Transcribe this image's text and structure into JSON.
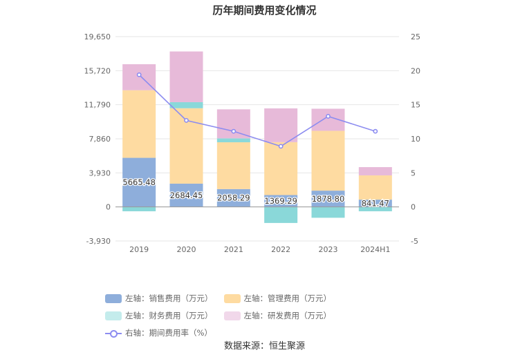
{
  "chart_data": {
    "type": "bar",
    "title": "历年期间费用变化情况",
    "categories": [
      "2019",
      "2020",
      "2021",
      "2022",
      "2023",
      "2024H1"
    ],
    "series": [
      {
        "name": "左轴：销售费用（万元）",
        "values": [
          5665.48,
          2684.45,
          2058.29,
          1369.29,
          1878.8,
          841.47
        ],
        "color": "#8eaedb",
        "stack": "left"
      },
      {
        "name": "左轴：管理费用（万元）",
        "values": [
          7800,
          8700,
          5400,
          6100,
          6900,
          2800
        ],
        "color": "#fedba1",
        "stack": "left"
      },
      {
        "name": "左轴：财务费用（万元）",
        "values": [
          -500,
          700,
          450,
          -1850,
          -1250,
          -500
        ],
        "color": "#8ad8d9",
        "stack": "left"
      },
      {
        "name": "左轴：研发费用（万元）",
        "values": [
          3000,
          5850,
          3350,
          3900,
          2550,
          950
        ],
        "color": "#e7bad9",
        "stack": "left"
      },
      {
        "name": "右轴：期间费用率（%）",
        "values": [
          19.4,
          12.7,
          11.1,
          8.9,
          13.3,
          11.1
        ],
        "color": "#8c8cf0",
        "type": "line",
        "axis": "right"
      }
    ],
    "data_labels": [
      "5665.48",
      "2684.45",
      "2058.29",
      "1369.29",
      "1878.80",
      "841.47"
    ],
    "y_left": {
      "ticks": [
        -3930,
        0,
        3930,
        7860,
        11790,
        15720,
        19650
      ],
      "tick_labels": [
        "-3,930",
        "0",
        "3,930",
        "7,860",
        "11,790",
        "15,720",
        "19,650"
      ],
      "range": [
        -3930,
        19650
      ]
    },
    "y_right": {
      "ticks": [
        -5,
        0,
        5,
        10,
        15,
        20,
        25
      ],
      "tick_labels": [
        "-5",
        "0",
        "5",
        "10",
        "15",
        "20",
        "25"
      ],
      "range": [
        -5,
        25
      ]
    },
    "grid": true,
    "legend_position": "bottom"
  },
  "legend": {
    "items": [
      {
        "label": "左轴：销售费用（万元）",
        "color": "#8eaedb",
        "kind": "bar"
      },
      {
        "label": "左轴：管理费用（万元）",
        "color": "#fedba1",
        "kind": "bar"
      },
      {
        "label": "左轴：财务费用（万元）",
        "color": "#c4ecec",
        "kind": "bar"
      },
      {
        "label": "左轴：研发费用（万元）",
        "color": "#f1d8ea",
        "kind": "bar"
      },
      {
        "label": "右轴：期间费用率（%）",
        "color": "#8c8cf0",
        "kind": "line"
      }
    ]
  },
  "source": "数据来源：恒生聚源"
}
